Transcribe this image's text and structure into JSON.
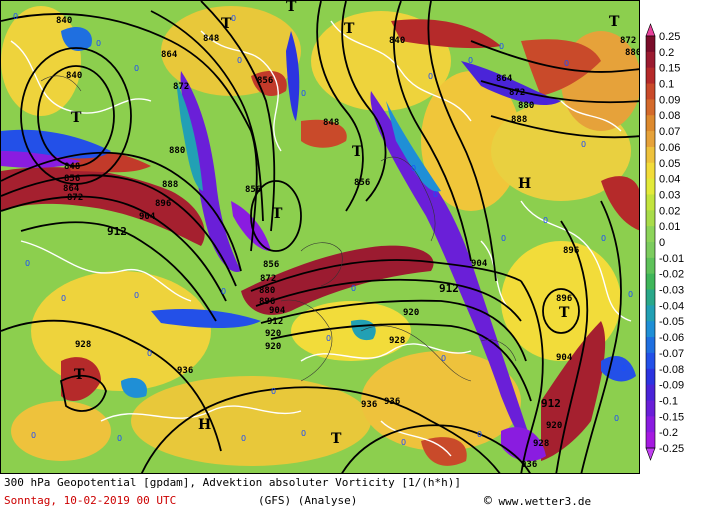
{
  "map": {
    "highs": [
      "H",
      "H",
      "H"
    ],
    "lows": [
      "T",
      "T",
      "T",
      "T",
      "T",
      "T",
      "T",
      "T",
      "T"
    ],
    "contour_labels": [
      "840",
      "848",
      "856",
      "864",
      "872",
      "880",
      "888",
      "896",
      "904",
      "912",
      "920",
      "928",
      "936"
    ],
    "zero_label": "0"
  },
  "colorbar": {
    "labels": [
      "0.25",
      "0.2",
      "0.15",
      "0.1",
      "0.09",
      "0.08",
      "0.07",
      "0.06",
      "0.05",
      "0.04",
      "0.03",
      "0.02",
      "0.01",
      "0",
      "-0.01",
      "-0.02",
      "-0.03",
      "-0.04",
      "-0.05",
      "-0.06",
      "-0.07",
      "-0.08",
      "-0.09",
      "-0.1",
      "-0.15",
      "-0.2",
      "-0.25"
    ],
    "colors": [
      "#7a0d2a",
      "#9b1b30",
      "#b52a2a",
      "#c94a2a",
      "#d46a2b",
      "#dd8a2e",
      "#e6a23a",
      "#eec23c",
      "#f2dc3a",
      "#e3ea3a",
      "#c3e43e",
      "#a8dc4a",
      "#8cd45a",
      "#7ccc5e",
      "#5ec25a",
      "#3fb65a",
      "#2aa88a",
      "#22a0b4",
      "#1f8fd6",
      "#1f6fe0",
      "#2350e8",
      "#2c34e0",
      "#4a24d8",
      "#6a1fd8",
      "#8a1ce0",
      "#a51ae0"
    ]
  },
  "footer": {
    "line1": "300 hPa Geopotential [gpdam], Advektion absoluter Vorticity [1/(h*h)]",
    "date": "Sonntag, 10-02-2019  00 UTC",
    "model": "(GFS)  (Analyse)",
    "credit": "www.wetter3.de",
    "copyright_symbol": "©"
  }
}
